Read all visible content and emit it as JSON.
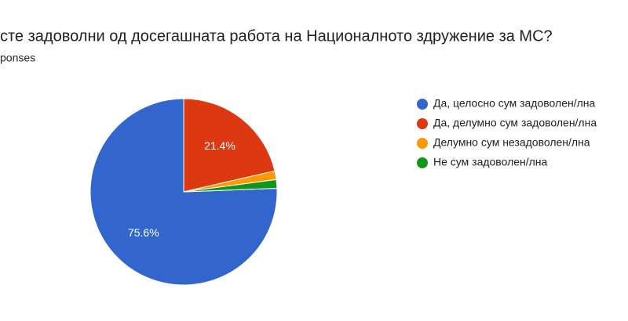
{
  "chart_data": {
    "type": "pie",
    "title": "сте задоволни од досегашната работа на Националното здружение за МС?",
    "subtitle": "ponses",
    "categories": [
      "Да, целосно сум задоволен/лна",
      "Да, делумно сум задоволен/лна",
      "Делумно сум незадоволен/лна",
      "Не сум задоволен/лна"
    ],
    "values": [
      75.6,
      21.4,
      1.5,
      1.5
    ],
    "value_labels": [
      "75.6%",
      "21.4%",
      null,
      null
    ],
    "colors": [
      "#3366cc",
      "#dc3912",
      "#ff9900",
      "#109618"
    ],
    "legend": "right"
  }
}
